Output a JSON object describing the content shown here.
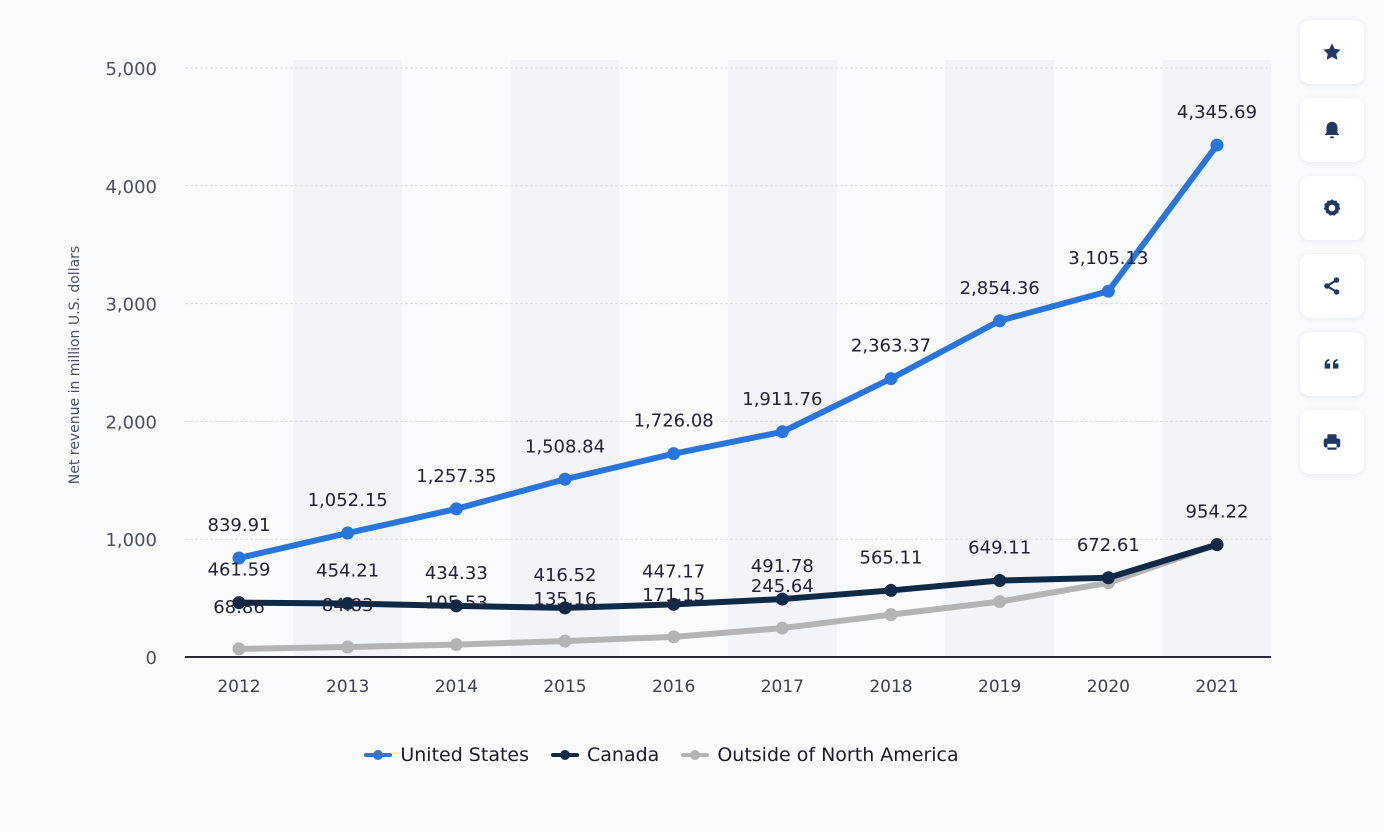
{
  "chart_data": {
    "type": "line",
    "title": "",
    "xlabel": "",
    "ylabel": "Net revenue in million U.S. dollars",
    "ylim": [
      0,
      5000
    ],
    "yticks": [
      0,
      1000,
      2000,
      3000,
      4000,
      5000
    ],
    "ytick_labels": [
      "0",
      "1,000",
      "2,000",
      "3,000",
      "4,000",
      "5,000"
    ],
    "grid": true,
    "legend_position": "bottom",
    "categories": [
      "2012",
      "2013",
      "2014",
      "2015",
      "2016",
      "2017",
      "2018",
      "2019",
      "2020",
      "2021"
    ],
    "series": [
      {
        "name": "United States",
        "color": "#2876dd",
        "values": [
          839.91,
          1052.15,
          1257.35,
          1508.84,
          1726.08,
          1911.76,
          2363.37,
          2854.36,
          3105.13,
          4345.69
        ],
        "labels": [
          "839.91",
          "1,052.15",
          "1,257.35",
          "1,508.84",
          "1,726.08",
          "1,911.76",
          "2,363.37",
          "2,854.36",
          "3,105.13",
          "4,345.69"
        ]
      },
      {
        "name": "Canada",
        "color": "#0e2a47",
        "values": [
          461.59,
          454.21,
          434.33,
          416.52,
          447.17,
          491.78,
          565.11,
          649.11,
          672.61,
          954.22
        ],
        "labels": [
          "461.59",
          "454.21",
          "434.33",
          "416.52",
          "447.17",
          "491.78",
          "565.11",
          "649.11",
          "672.61",
          ""
        ]
      },
      {
        "name": "Outside of North America",
        "color": "#b4b4b4",
        "values": [
          68.86,
          84.83,
          105.53,
          135.16,
          171.15,
          245.64,
          360,
          470,
          630,
          954.22
        ],
        "labels": [
          "68.86",
          "84.83",
          "105.53",
          "135.16",
          "171.15",
          "245.64",
          "",
          "",
          "",
          "954.22"
        ]
      }
    ]
  },
  "sidebar": {
    "buttons": [
      {
        "name": "favorite",
        "icon": "star-icon"
      },
      {
        "name": "notification",
        "icon": "bell-icon"
      },
      {
        "name": "settings",
        "icon": "gear-icon"
      },
      {
        "name": "share",
        "icon": "share-icon"
      },
      {
        "name": "cite",
        "icon": "quote-icon"
      },
      {
        "name": "print",
        "icon": "print-icon"
      }
    ],
    "icon_color": "#1d3a66"
  }
}
